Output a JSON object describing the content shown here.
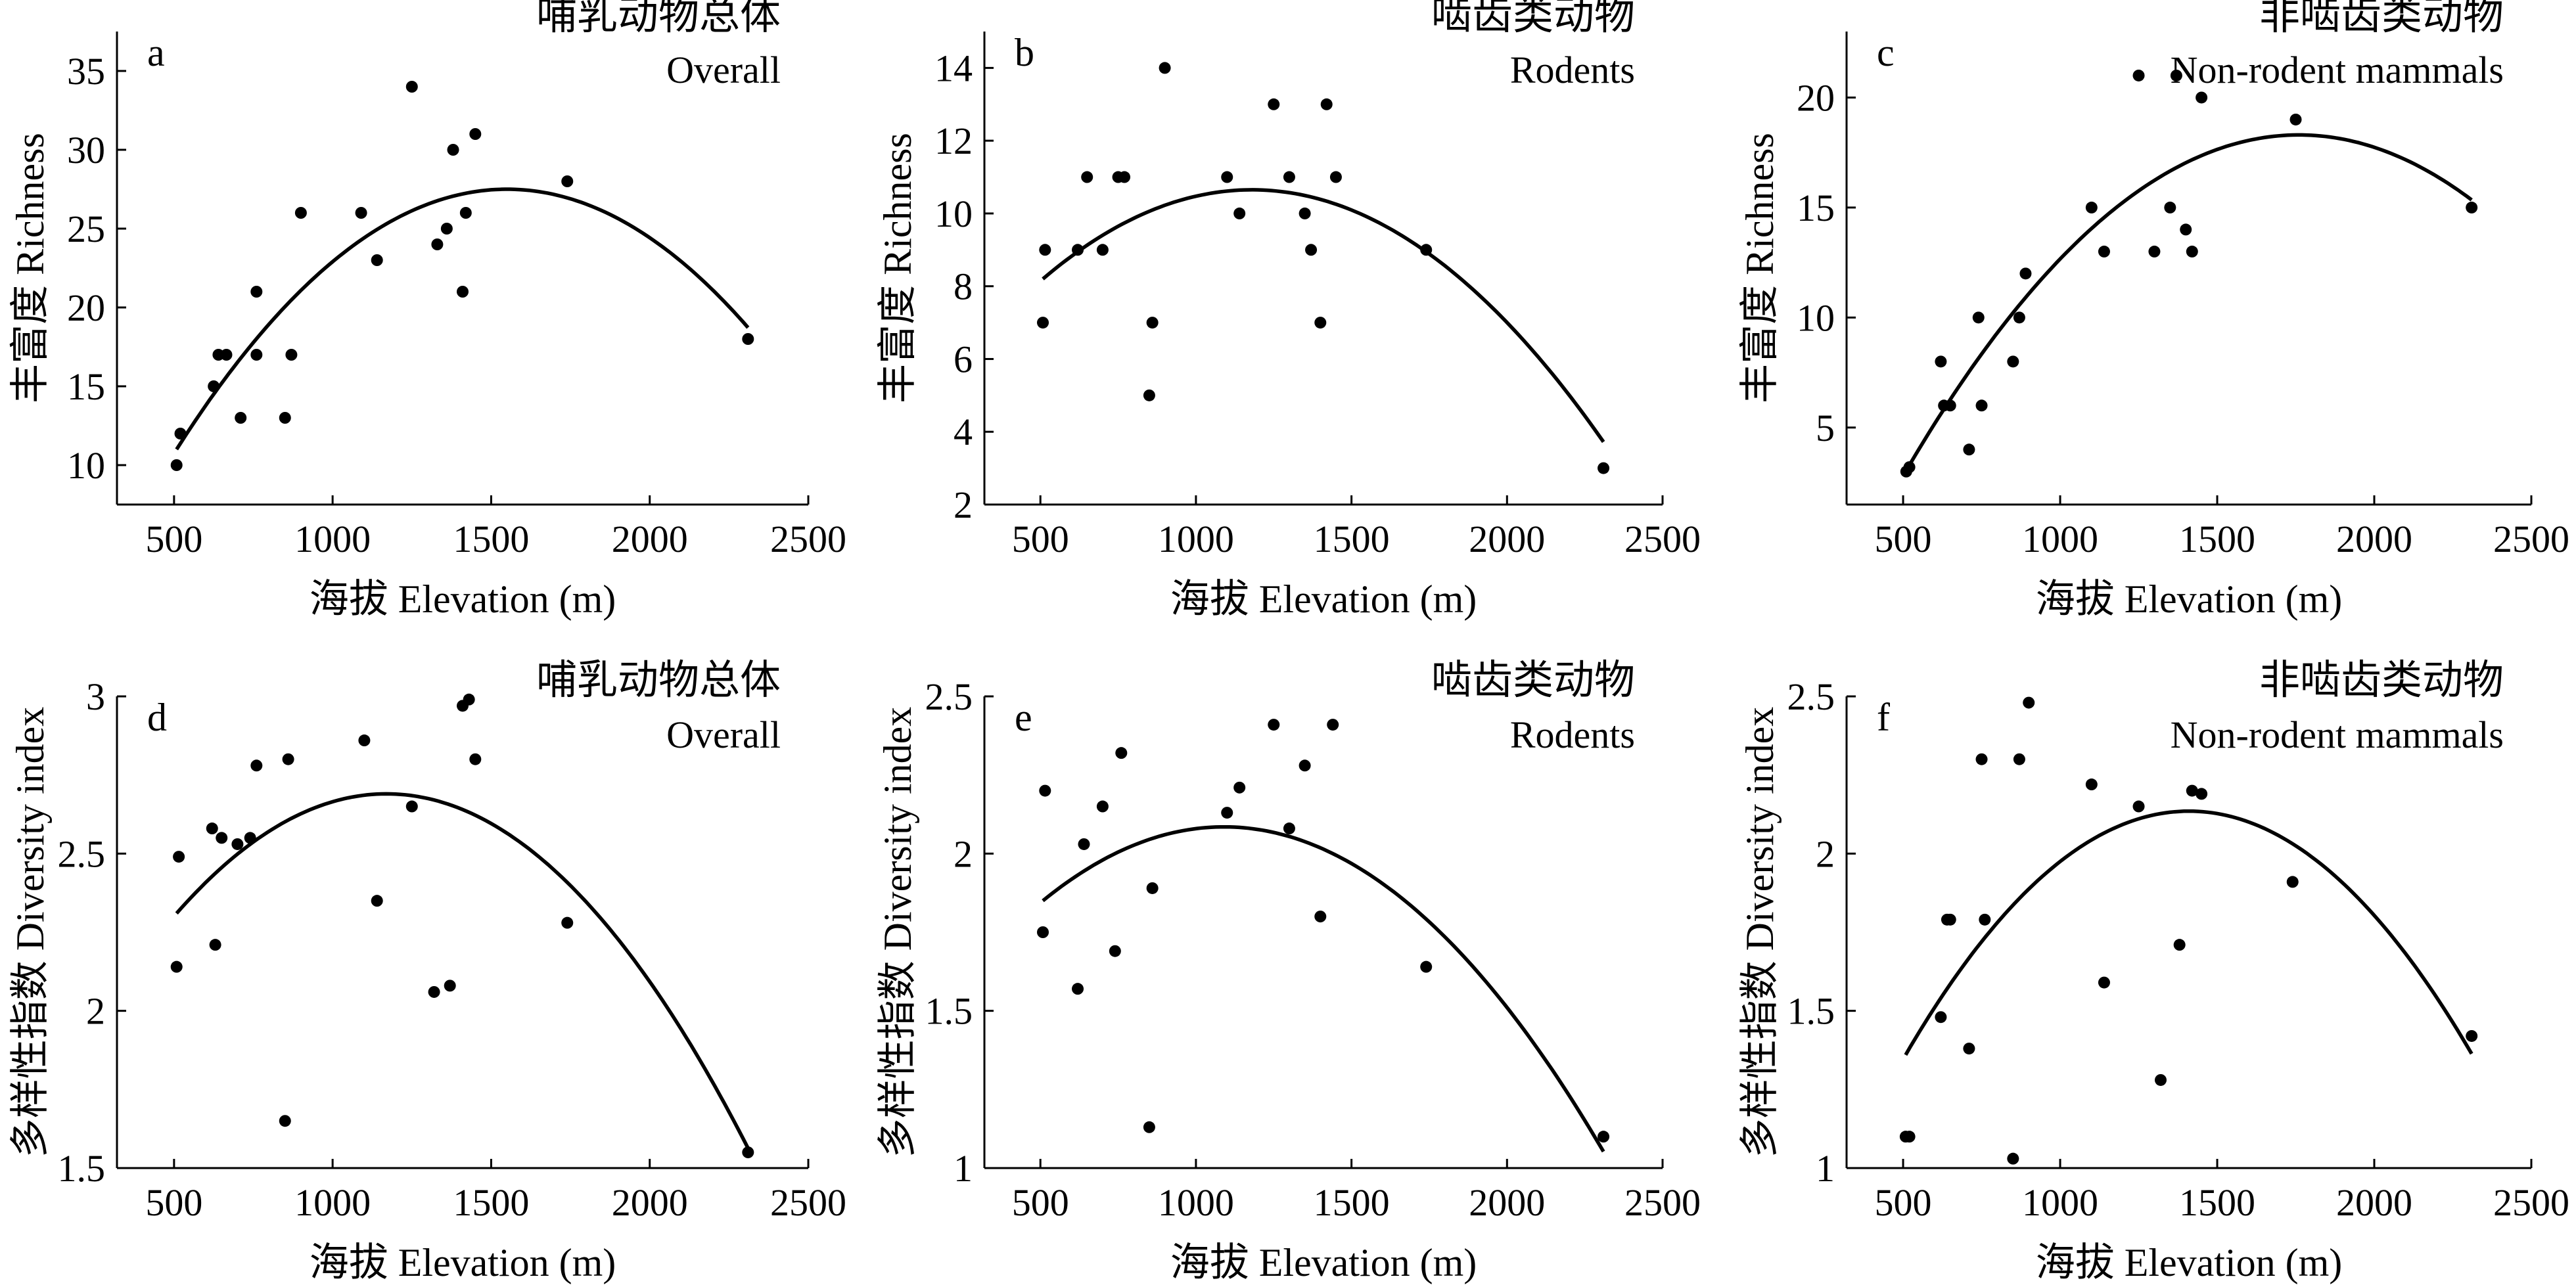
{
  "chart_data": [
    {
      "type": "scatter",
      "panel": "a",
      "label_zh": "哺乳动物总体",
      "label_en": "Overall",
      "xlabel": "海拔 Elevation (m)",
      "ylabel": "丰富度 Richness",
      "xlim": [
        320,
        2500
      ],
      "ylim": [
        7.5,
        37.5
      ],
      "xticks": [
        500,
        1000,
        1500,
        2000,
        2500
      ],
      "yticks": [
        10,
        15,
        20,
        25,
        30,
        35
      ],
      "x": [
        508,
        520,
        625,
        640,
        665,
        710,
        760,
        760,
        850,
        870,
        900,
        1090,
        1140,
        1250,
        1330,
        1360,
        1380,
        1410,
        1420,
        1450,
        1740,
        2310
      ],
      "y": [
        10,
        12,
        15,
        17,
        17,
        13,
        21,
        17,
        13,
        17,
        26,
        26,
        23,
        34,
        24,
        25,
        30,
        21,
        26,
        31,
        28,
        18
      ],
      "fit": {
        "type": "quadratic",
        "vertex_x": 1550,
        "vertex_y": 27.5,
        "x_range": [
          508,
          2310
        ],
        "start_y": 11
      }
    },
    {
      "type": "scatter",
      "panel": "b",
      "label_zh": "啮齿类动物",
      "label_en": "Rodents",
      "xlabel": "海拔 Elevation (m)",
      "ylabel": "丰富度 Richness",
      "xlim": [
        320,
        2500
      ],
      "ylim": [
        2,
        15
      ],
      "xticks": [
        500,
        1000,
        1500,
        2000,
        2500
      ],
      "yticks": [
        2,
        4,
        6,
        8,
        10,
        12,
        14
      ],
      "x": [
        508,
        515,
        620,
        650,
        700,
        750,
        770,
        850,
        860,
        900,
        1100,
        1140,
        1250,
        1300,
        1350,
        1370,
        1400,
        1420,
        1450,
        1740,
        2310
      ],
      "y": [
        7,
        9,
        9,
        11,
        9,
        11,
        11,
        5,
        7,
        14,
        11,
        10,
        13,
        11,
        10,
        9,
        7,
        13,
        11,
        9,
        3
      ],
      "fit": {
        "type": "quadratic",
        "vertex_x": 1180,
        "vertex_y": 10.65,
        "x_range": [
          508,
          2310
        ],
        "start_y": 8.2
      }
    },
    {
      "type": "scatter",
      "panel": "c",
      "label_zh": "非啮齿类动物",
      "label_en": "Non-rodent mammals",
      "xlabel": "海拔 Elevation (m)",
      "ylabel": "丰富度 Richness",
      "xlim": [
        320,
        2500
      ],
      "ylim": [
        1.5,
        23
      ],
      "xticks": [
        500,
        1000,
        1500,
        2000,
        2500
      ],
      "yticks": [
        5,
        10,
        15,
        20
      ],
      "x": [
        510,
        520,
        620,
        630,
        650,
        710,
        740,
        750,
        850,
        870,
        890,
        1100,
        1140,
        1250,
        1300,
        1350,
        1370,
        1400,
        1420,
        1450,
        1750,
        2310
      ],
      "y": [
        3,
        3.2,
        8,
        6,
        6,
        4,
        10,
        6,
        8,
        10,
        12,
        15,
        13,
        21,
        13,
        15,
        21,
        14,
        13,
        20,
        19,
        15
      ],
      "fit": {
        "type": "quadratic",
        "vertex_x": 1760,
        "vertex_y": 18.3,
        "x_range": [
          508,
          2310
        ],
        "start_y": 3
      }
    },
    {
      "type": "scatter",
      "panel": "d",
      "label_zh": "哺乳动物总体",
      "label_en": "Overall",
      "xlabel": "海拔 Elevation (m)",
      "ylabel": "多样性指数 Diversity index",
      "xlim": [
        320,
        2500
      ],
      "ylim": [
        1.5,
        3.0
      ],
      "xticks": [
        500,
        1000,
        1500,
        2000,
        2500
      ],
      "yticks": [
        1.5,
        2.0,
        2.5,
        3.0
      ],
      "x": [
        508,
        515,
        620,
        630,
        650,
        700,
        740,
        760,
        850,
        860,
        1100,
        1140,
        1250,
        1320,
        1370,
        1410,
        1430,
        1450,
        1740,
        2310
      ],
      "y": [
        2.14,
        2.49,
        2.58,
        2.21,
        2.55,
        2.53,
        2.55,
        2.78,
        1.65,
        2.8,
        2.86,
        2.35,
        2.65,
        2.06,
        2.08,
        2.97,
        2.99,
        2.8,
        2.28,
        1.55
      ],
      "fit": {
        "type": "quadratic",
        "vertex_x": 1170,
        "vertex_y": 2.69,
        "x_range": [
          508,
          2310
        ],
        "start_y": 2.31
      }
    },
    {
      "type": "scatter",
      "panel": "e",
      "label_zh": "啮齿类动物",
      "label_en": "Rodents",
      "xlabel": "海拔 Elevation (m)",
      "ylabel": "多样性指数 Diversity index",
      "xlim": [
        320,
        2500
      ],
      "ylim": [
        1.0,
        2.5
      ],
      "xticks": [
        500,
        1000,
        1500,
        2000,
        2500
      ],
      "yticks": [
        1.0,
        1.5,
        2.0,
        2.5
      ],
      "x": [
        508,
        515,
        620,
        640,
        700,
        740,
        760,
        850,
        860,
        1100,
        1140,
        1250,
        1300,
        1350,
        1400,
        1440,
        1740,
        2310
      ],
      "y": [
        1.75,
        2.2,
        1.57,
        2.03,
        2.15,
        1.69,
        2.32,
        1.13,
        1.89,
        2.13,
        2.21,
        2.41,
        2.08,
        2.28,
        1.8,
        2.41,
        1.64,
        1.1
      ],
      "fit": {
        "type": "quadratic",
        "vertex_x": 1090,
        "vertex_y": 2.085,
        "x_range": [
          508,
          2310
        ],
        "start_y": 1.85
      }
    },
    {
      "type": "scatter",
      "panel": "f",
      "label_zh": "非啮齿类动物",
      "label_en": "Non-rodent mammals",
      "xlabel": "海拔 Elevation (m)",
      "ylabel": "多样性指数 Diversity index",
      "xlim": [
        320,
        2500
      ],
      "ylim": [
        1.0,
        2.5
      ],
      "xticks": [
        500,
        1000,
        1500,
        2000,
        2500
      ],
      "yticks": [
        1.0,
        1.5,
        2.0,
        2.5
      ],
      "x": [
        508,
        520,
        620,
        640,
        650,
        710,
        750,
        760,
        850,
        870,
        900,
        1100,
        1140,
        1250,
        1320,
        1380,
        1420,
        1450,
        1740,
        2310
      ],
      "y": [
        1.1,
        1.1,
        1.48,
        1.79,
        1.79,
        1.38,
        2.3,
        1.79,
        1.03,
        2.3,
        2.48,
        2.22,
        1.59,
        2.15,
        1.28,
        1.71,
        2.2,
        2.19,
        1.91,
        1.42
      ],
      "fit": {
        "type": "quadratic",
        "vertex_x": 1410,
        "vertex_y": 2.135,
        "x_range": [
          508,
          2310
        ],
        "start_y": 1.36
      }
    }
  ]
}
